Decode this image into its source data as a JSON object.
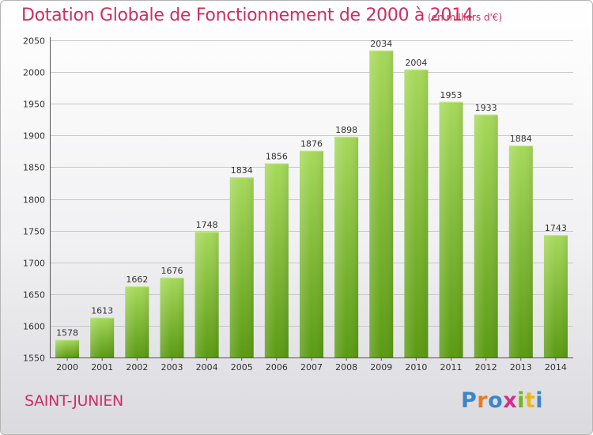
{
  "title": "Dotation Globale de Fonctionnement de 2000 à 2014",
  "subtitle": "(en milliers d'€)",
  "commune": "SAINT-JUNIEN",
  "logo": {
    "text": "Proxiti",
    "colors": [
      "#3a86c8",
      "#e87a1e",
      "#3a86c8",
      "#d12f8a",
      "#7ab317",
      "#e8b81e",
      "#3a86c8"
    ]
  },
  "colors": {
    "title": "#cc2f5f",
    "bar_top": "#a6d95a",
    "bar_bottom": "#5a9a12",
    "grid": "#c8c8c8"
  },
  "chart_data": {
    "type": "bar",
    "categories": [
      "2000",
      "2001",
      "2002",
      "2003",
      "2004",
      "2005",
      "2006",
      "2007",
      "2008",
      "2009",
      "2010",
      "2011",
      "2012",
      "2013",
      "2014"
    ],
    "values": [
      1578,
      1613,
      1662,
      1676,
      1748,
      1834,
      1856,
      1876,
      1898,
      2034,
      2004,
      1953,
      1933,
      1884,
      1743
    ],
    "ylim": [
      1550,
      2050
    ],
    "yticks": [
      1550,
      1600,
      1650,
      1700,
      1750,
      1800,
      1850,
      1900,
      1950,
      2000,
      2050
    ],
    "grid": true
  }
}
